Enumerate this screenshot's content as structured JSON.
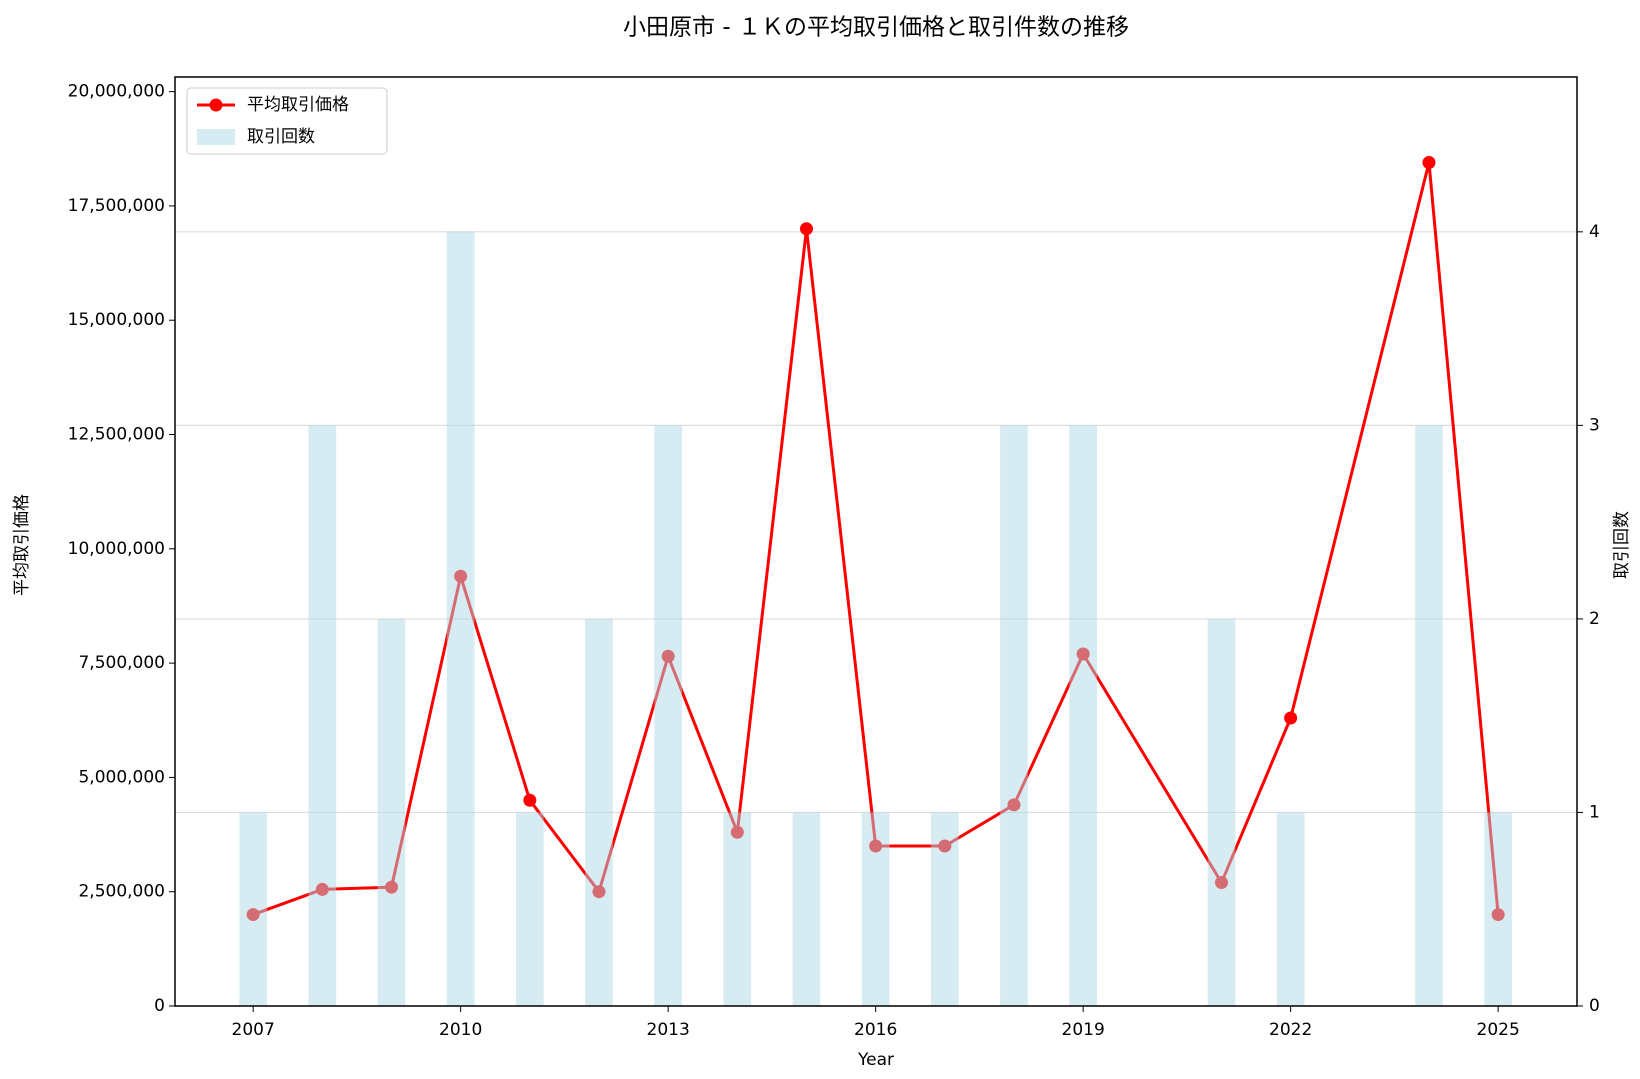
{
  "chart_data": {
    "type": "combo",
    "title": "小田原市 - １Ｋの平均取引価格と取引件数の推移",
    "xlabel": "Year",
    "ylabel": "平均取引価格",
    "y2label": "取引回数",
    "x": [
      2007,
      2008,
      2009,
      2010,
      2011,
      2012,
      2013,
      2014,
      2015,
      2016,
      2017,
      2018,
      2019,
      2021,
      2022,
      2024,
      2025
    ],
    "series": [
      {
        "name": "平均取引価格",
        "type": "line",
        "color": "#ff0000",
        "values": [
          2000000,
          2550000,
          2600000,
          9400000,
          4500000,
          2500000,
          7650000,
          3800000,
          17000000,
          3500000,
          3500000,
          4400000,
          7700000,
          2700000,
          6300000,
          18450000,
          2000000
        ]
      },
      {
        "name": "取引回数",
        "type": "bar",
        "axis": "y2",
        "color": "#add8e6",
        "values": [
          1,
          3,
          2,
          4,
          1,
          2,
          3,
          1,
          1,
          1,
          1,
          3,
          3,
          2,
          1,
          3,
          1
        ]
      }
    ],
    "xlim": [
      2005.87,
      2026.14
    ],
    "xticks": [
      2007,
      2010,
      2013,
      2016,
      2019,
      2022,
      2025
    ],
    "ylim": [
      0,
      20320000
    ],
    "yticks": [
      0,
      {
        "value": 2500000,
        "label": "2,500,000"
      },
      {
        "value": 5000000,
        "label": "5,000,000"
      },
      {
        "value": 7500000,
        "label": "7,500,000"
      },
      {
        "value": 10000000,
        "label": "10,000,000"
      },
      {
        "value": 12500000,
        "label": "12,500,000"
      },
      {
        "value": 15000000,
        "label": "15,000,000"
      },
      {
        "value": 17500000,
        "label": "17,500,000"
      },
      {
        "value": 20000000,
        "label": "20,000,000"
      }
    ],
    "y2lim": [
      0,
      4.8
    ],
    "y2ticks": [
      0,
      1,
      2,
      3,
      4
    ],
    "ytick_color": "#8b0000",
    "y2tick_color": "#00008b",
    "grid": true,
    "legend": "upper left"
  }
}
